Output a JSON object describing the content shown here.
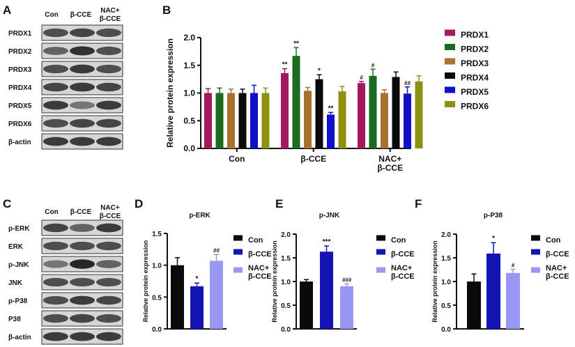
{
  "panels": {
    "A": {
      "label": "A",
      "columns": [
        "Con",
        "β-CCE",
        "NAC+",
        "β-CCE"
      ],
      "rows": [
        "PRDX1",
        "PRDX2",
        "PRDX3",
        "PRDX4",
        "PRDX5",
        "PRDX6",
        "β-actin"
      ]
    },
    "B": {
      "label": "B"
    },
    "C": {
      "label": "C",
      "columns": [
        "Con",
        "β-CCE",
        "NAC+",
        "β-CCE"
      ],
      "rows": [
        "p-ERK",
        "ERK",
        "p-JNK",
        "JNK",
        "p-P38",
        "P38",
        "β-actin"
      ]
    },
    "D": {
      "label": "D"
    },
    "E": {
      "label": "E"
    },
    "F": {
      "label": "F"
    }
  },
  "chart_data": [
    {
      "id": "B",
      "type": "bar",
      "title": "",
      "ylabel": "Relative protein expression",
      "xlabel": "",
      "ylim": [
        0,
        2.0
      ],
      "yticks": [
        "0.0",
        "0.5",
        "1.0",
        "1.5",
        "2.0"
      ],
      "categories": [
        "Con",
        "β-CCE",
        "NAC+\nβ-CCE"
      ],
      "legend": "right",
      "series": [
        {
          "name": "PRDX1",
          "color": "#a3195b",
          "values": [
            1.0,
            1.36,
            1.18
          ],
          "errors": [
            0.08,
            0.08,
            0.03
          ],
          "annotations": [
            "",
            "**",
            "#"
          ]
        },
        {
          "name": "PRDX2",
          "color": "#1a6b1f",
          "values": [
            1.0,
            1.67,
            1.31
          ],
          "errors": [
            0.09,
            0.15,
            0.12
          ],
          "annotations": [
            "",
            "**",
            "#"
          ]
        },
        {
          "name": "PRDX3",
          "color": "#a8712e",
          "values": [
            1.0,
            1.04,
            1.0
          ],
          "errors": [
            0.07,
            0.06,
            0.06
          ],
          "annotations": [
            "",
            "",
            ""
          ]
        },
        {
          "name": "PRDX4",
          "color": "#0a0a0a",
          "values": [
            1.0,
            1.25,
            1.29
          ],
          "errors": [
            0.07,
            0.08,
            0.09
          ],
          "annotations": [
            "",
            "*",
            ""
          ]
        },
        {
          "name": "PRDX5",
          "color": "#1010c8",
          "values": [
            1.0,
            0.61,
            0.99
          ],
          "errors": [
            0.14,
            0.04,
            0.12
          ],
          "annotations": [
            "",
            "**",
            "##"
          ]
        },
        {
          "name": "PRDX6",
          "color": "#8f8f12",
          "values": [
            1.0,
            1.03,
            1.21
          ],
          "errors": [
            0.09,
            0.09,
            0.1
          ],
          "annotations": [
            "",
            "",
            ""
          ]
        }
      ]
    },
    {
      "id": "D",
      "type": "bar",
      "title": "p-ERK",
      "ylabel": "Relative protein expression",
      "ylim": [
        0,
        1.5
      ],
      "yticks": [
        "0.0",
        "0.5",
        "1.0",
        "1.5"
      ],
      "categories": [
        "Con",
        "β-CCE",
        "NAC+\nβ-CCE"
      ],
      "legend": "right",
      "colors": [
        "#0a0a0a",
        "#1414b4",
        "#9898f4"
      ],
      "values": [
        1.0,
        0.67,
        1.07
      ],
      "errors": [
        0.12,
        0.05,
        0.1
      ],
      "annotations": [
        "",
        "*",
        "##"
      ]
    },
    {
      "id": "E",
      "type": "bar",
      "title": "p-JNK",
      "ylabel": "Relative protein expression",
      "ylim": [
        0,
        2.0
      ],
      "yticks": [
        "0.0",
        "0.5",
        "1.0",
        "1.5",
        "2.0"
      ],
      "categories": [
        "Con",
        "β-CCE",
        "NAC+\nβ-CCE"
      ],
      "legend": "right",
      "colors": [
        "#0a0a0a",
        "#1414b4",
        "#9898f4"
      ],
      "values": [
        1.0,
        1.63,
        0.9
      ],
      "errors": [
        0.04,
        0.12,
        0.05
      ],
      "annotations": [
        "",
        "***",
        "###"
      ]
    },
    {
      "id": "F",
      "type": "bar",
      "title": "p-P38",
      "ylabel": "Relative protein expression",
      "ylim": [
        0,
        2.0
      ],
      "yticks": [
        "0.0",
        "0.5",
        "1.0",
        "1.5",
        "2.0"
      ],
      "categories": [
        "Con",
        "β-CCE",
        "NAC+\nβ-CCE"
      ],
      "legend": "right",
      "colors": [
        "#0a0a0a",
        "#1414b4",
        "#9898f4"
      ],
      "values": [
        1.0,
        1.59,
        1.18
      ],
      "errors": [
        0.16,
        0.23,
        0.08
      ],
      "annotations": [
        "",
        "*",
        "#"
      ]
    }
  ]
}
